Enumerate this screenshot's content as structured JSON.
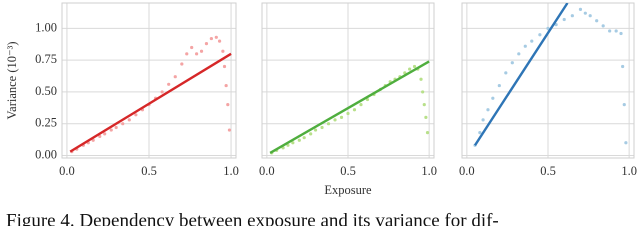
{
  "chart_data": [
    {
      "type": "scatter",
      "ylabel": "Variance (10⁻³)",
      "x": [
        0.03,
        0.06,
        0.1,
        0.13,
        0.16,
        0.2,
        0.23,
        0.27,
        0.3,
        0.34,
        0.38,
        0.42,
        0.46,
        0.5,
        0.54,
        0.58,
        0.62,
        0.66,
        0.7,
        0.73,
        0.76,
        0.79,
        0.82,
        0.85,
        0.88,
        0.91,
        0.93,
        0.95,
        0.96,
        0.97,
        0.98,
        0.99
      ],
      "values": [
        0.03,
        0.05,
        0.08,
        0.1,
        0.12,
        0.15,
        0.17,
        0.2,
        0.22,
        0.25,
        0.28,
        0.32,
        0.36,
        0.4,
        0.45,
        0.5,
        0.56,
        0.62,
        0.72,
        0.8,
        0.85,
        0.8,
        0.82,
        0.88,
        0.92,
        0.93,
        0.9,
        0.82,
        0.7,
        0.55,
        0.4,
        0.2
      ],
      "color": "#f4a4a4",
      "fit_x": [
        0.02,
        1.0
      ],
      "fit_values": [
        0.03,
        0.8
      ],
      "fit_color": "#d62728",
      "xlim": [
        -0.03,
        1.03
      ],
      "ylim": [
        -0.02,
        1.2
      ],
      "xticks": [
        {
          "value": 0,
          "label": "0.0"
        },
        0.5,
        {
          "value": 1,
          "label": "1.0"
        }
      ],
      "yticks": [
        {
          "value": 0,
          "label": "0.00"
        },
        0.25,
        {
          "value": 0.5,
          "label": "0.50"
        },
        0.75,
        {
          "value": 1,
          "label": "1.00"
        }
      ],
      "ytick_labels": true,
      "grid": true
    },
    {
      "type": "scatter",
      "xlabel": "Exposure",
      "x": [
        0.03,
        0.06,
        0.1,
        0.13,
        0.16,
        0.2,
        0.23,
        0.27,
        0.3,
        0.34,
        0.38,
        0.42,
        0.46,
        0.5,
        0.54,
        0.58,
        0.62,
        0.66,
        0.7,
        0.73,
        0.76,
        0.79,
        0.82,
        0.85,
        0.88,
        0.91,
        0.93,
        0.95,
        0.96,
        0.97,
        0.98,
        0.99
      ],
      "values": [
        0.02,
        0.04,
        0.06,
        0.08,
        0.1,
        0.12,
        0.14,
        0.17,
        0.2,
        0.22,
        0.25,
        0.28,
        0.3,
        0.33,
        0.36,
        0.4,
        0.44,
        0.48,
        0.52,
        0.55,
        0.58,
        0.6,
        0.62,
        0.65,
        0.68,
        0.7,
        0.68,
        0.6,
        0.5,
        0.4,
        0.3,
        0.18
      ],
      "color": "#b8e08a",
      "fit_x": [
        0.02,
        1.0
      ],
      "fit_values": [
        0.02,
        0.74
      ],
      "fit_color": "#4fae3e",
      "xlim": [
        -0.03,
        1.03
      ],
      "ylim": [
        -0.02,
        1.2
      ],
      "xticks": [
        {
          "value": 0,
          "label": "0.0"
        },
        0.5,
        {
          "value": 1,
          "label": "1.0"
        }
      ],
      "yticks": [
        0,
        0.25,
        0.5,
        0.75,
        1
      ],
      "ytick_labels": false,
      "grid": true
    },
    {
      "type": "scatter",
      "x": [
        0.05,
        0.08,
        0.1,
        0.13,
        0.16,
        0.2,
        0.24,
        0.28,
        0.32,
        0.36,
        0.4,
        0.45,
        0.5,
        0.55,
        0.6,
        0.65,
        0.7,
        0.73,
        0.76,
        0.8,
        0.84,
        0.88,
        0.92,
        0.95,
        0.96,
        0.97,
        0.98
      ],
      "values": [
        0.08,
        0.18,
        0.28,
        0.36,
        0.45,
        0.55,
        0.65,
        0.73,
        0.8,
        0.86,
        0.9,
        0.95,
        1.0,
        1.03,
        1.07,
        1.1,
        1.15,
        1.12,
        1.1,
        1.06,
        1.02,
        0.98,
        0.98,
        0.96,
        0.7,
        0.4,
        0.1
      ],
      "color": "#a6cbe3",
      "fit_x": [
        0.05,
        0.62
      ],
      "fit_values": [
        0.08,
        1.2
      ],
      "fit_color": "#2e75b6",
      "xlim": [
        -0.03,
        1.03
      ],
      "ylim": [
        -0.02,
        1.2
      ],
      "xticks": [
        {
          "value": 0,
          "label": "0.0"
        },
        0.5,
        {
          "value": 1,
          "label": "1.0"
        }
      ],
      "yticks": [
        0,
        0.25,
        0.5,
        0.75,
        1
      ],
      "ytick_labels": false,
      "grid": true
    }
  ],
  "caption": "Figure 4.  Dependency between exposure and its variance for dif-"
}
